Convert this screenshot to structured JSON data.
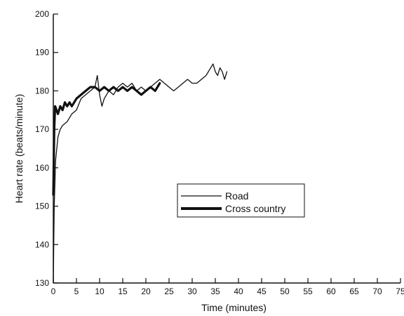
{
  "chart_data": {
    "type": "line",
    "title": "",
    "xlabel": "Time (minutes)",
    "ylabel": "Heart rate (beats/minute)",
    "xlim": [
      0,
      75
    ],
    "ylim": [
      130,
      200
    ],
    "xticks": [
      0,
      5,
      10,
      15,
      20,
      25,
      30,
      35,
      40,
      45,
      50,
      55,
      60,
      65,
      70,
      75
    ],
    "yticks": [
      130,
      140,
      150,
      160,
      170,
      180,
      190,
      200
    ],
    "grid": false,
    "legend": "center-right",
    "series": [
      {
        "name": "Road",
        "color": "#111111",
        "style": "thin",
        "x": [
          0,
          0.2,
          0.5,
          1,
          1.5,
          2,
          3,
          4,
          5,
          6,
          7,
          8,
          9,
          9.5,
          10,
          10.5,
          11,
          12,
          13,
          14,
          15,
          16,
          17,
          18,
          19,
          20,
          21,
          22,
          23,
          24,
          25,
          26,
          27,
          28,
          29,
          30,
          31,
          32,
          33,
          34,
          34.5,
          35,
          35.5,
          36,
          36.5,
          37,
          37.5
        ],
        "y": [
          130,
          150,
          162,
          168,
          170,
          171,
          172,
          174,
          175,
          178,
          179,
          180,
          181,
          184,
          179,
          176,
          178,
          180,
          179,
          181,
          182,
          181,
          182,
          180,
          181,
          180,
          181,
          182,
          183,
          182,
          181,
          180,
          181,
          182,
          183,
          182,
          182,
          183,
          184,
          186,
          187,
          185,
          184,
          186,
          185,
          183,
          185
        ]
      },
      {
        "name": "Cross country",
        "color": "#111111",
        "style": "thick",
        "x": [
          0,
          0.2,
          0.4,
          0.7,
          1,
          1.5,
          2,
          2.5,
          3,
          3.5,
          4,
          5,
          6,
          7,
          8,
          9,
          10,
          11,
          12,
          13,
          14,
          15,
          16,
          17,
          18,
          19,
          20,
          21,
          22,
          23
        ],
        "y": [
          153,
          170,
          176,
          175,
          174,
          176,
          175,
          177,
          176,
          177,
          176,
          178,
          179,
          180,
          181,
          181,
          180,
          181,
          180,
          181,
          180,
          181,
          180,
          181,
          180,
          179,
          180,
          181,
          180,
          182
        ]
      }
    ]
  }
}
